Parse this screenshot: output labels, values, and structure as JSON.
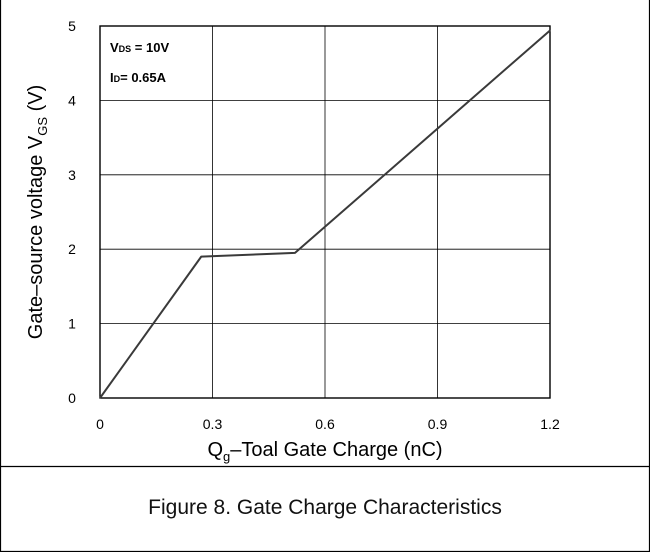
{
  "chart_data": {
    "type": "line",
    "title": "",
    "xlabel": {
      "prefix": "Q",
      "sub": "g",
      "suffix": "–Toal Gate Charge  (nC)"
    },
    "ylabel": {
      "prefix": "Gate–source voltage V",
      "sub": "GS",
      "suffix": " (V)"
    },
    "xlim": [
      0,
      1.2
    ],
    "ylim": [
      0,
      5
    ],
    "x_ticks": [
      "0",
      "0.3",
      "0.6",
      "0.9",
      "1.2"
    ],
    "x_tick_values": [
      0,
      0.3,
      0.6,
      0.9,
      1.2
    ],
    "y_ticks": [
      "0",
      "1",
      "2",
      "3",
      "4",
      "5"
    ],
    "y_tick_values": [
      0,
      1,
      2,
      3,
      4,
      5
    ],
    "grid": true,
    "series": [
      {
        "x": [
          0,
          0.27,
          0.52,
          1.2
        ],
        "y": [
          0,
          1.9,
          1.95,
          4.94
        ]
      }
    ],
    "annotations": [
      {
        "prefix": "V",
        "sub": "DS",
        "suffix": " = 10V"
      },
      {
        "prefix": "I",
        "sub": "D",
        "suffix": "= 0.65A"
      }
    ],
    "line_color": "#3a3a3a"
  },
  "caption": "Figure 8. Gate Charge Characteristics"
}
